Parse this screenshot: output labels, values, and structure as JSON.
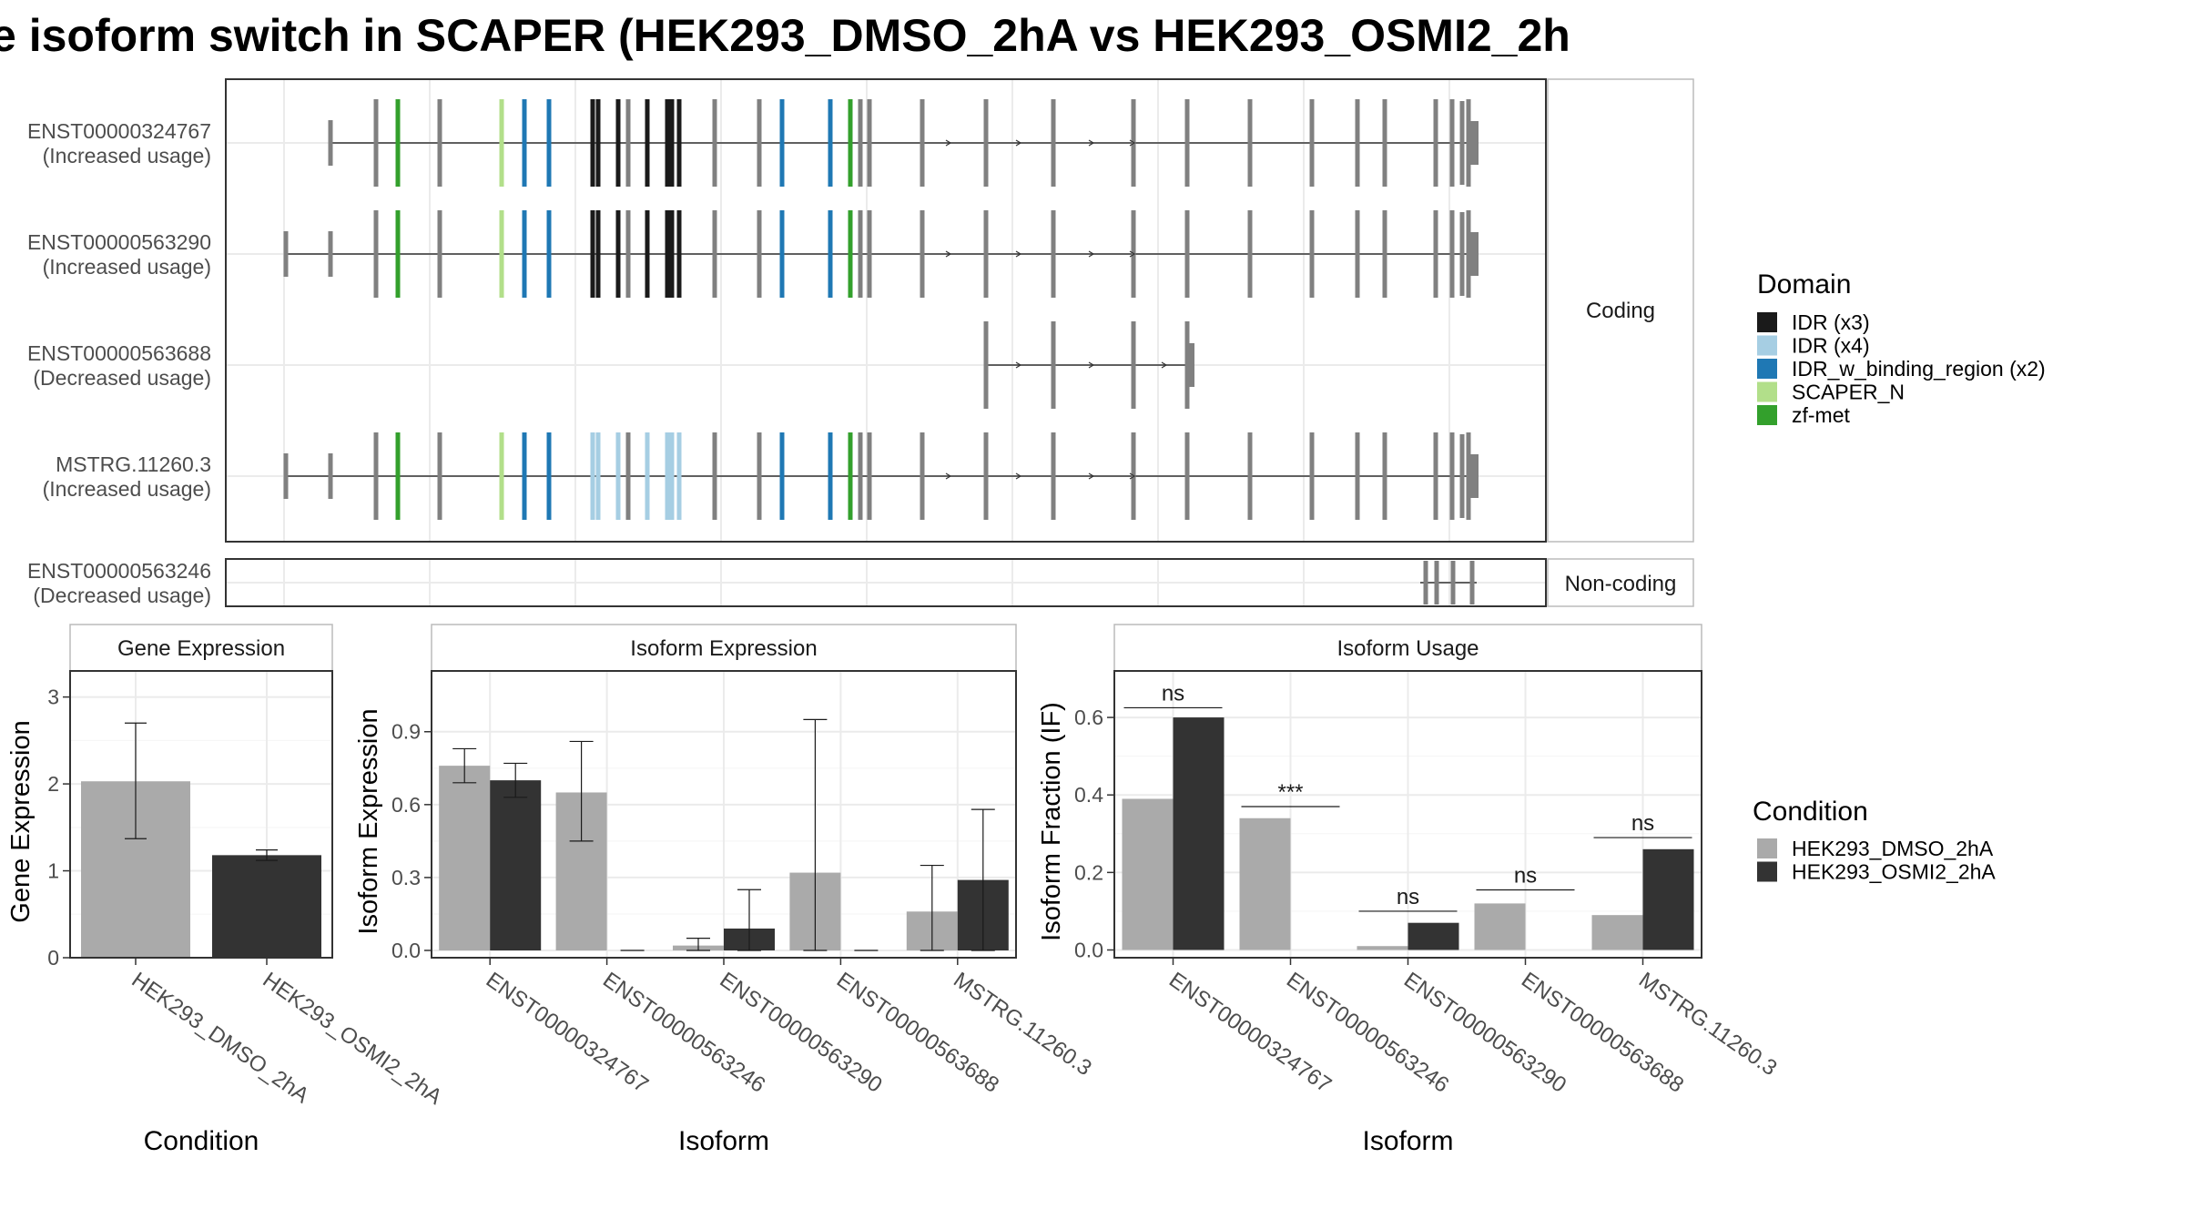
{
  "title": "e isoform switch in SCAPER (HEK293_DMSO_2hA vs HEK293_OSMI2_2h",
  "structure": {
    "facets": [
      "Coding",
      "Non-coding"
    ],
    "isoforms": [
      {
        "id": "ENST00000324767",
        "usage": "(Increased usage)",
        "facet": "Coding"
      },
      {
        "id": "ENST00000563290",
        "usage": "(Increased usage)",
        "facet": "Coding"
      },
      {
        "id": "ENST00000563688",
        "usage": "(Decreased usage)",
        "facet": "Coding"
      },
      {
        "id": "MSTRG.11260.3",
        "usage": "(Increased usage)",
        "facet": "Coding"
      },
      {
        "id": "ENST00000563246",
        "usage": "(Decreased usage)",
        "facet": "Non-coding"
      }
    ],
    "domain_legend": {
      "title": "Domain",
      "items": [
        {
          "label": "IDR (x3)",
          "color": "#1a1a1a"
        },
        {
          "label": "IDR (x4)",
          "color": "#a6cee3"
        },
        {
          "label": "IDR_w_binding_region (x2)",
          "color": "#1f78b4"
        },
        {
          "label": "SCAPER_N",
          "color": "#b2df8a"
        },
        {
          "label": "zf-met",
          "color": "#33a02c"
        }
      ]
    }
  },
  "condition_legend": {
    "title": "Condition",
    "items": [
      {
        "label": "HEK293_DMSO_2hA",
        "color": "#aaaaaa"
      },
      {
        "label": "HEK293_OSMI2_2hA",
        "color": "#333333"
      }
    ]
  },
  "chart_data": [
    {
      "type": "bar",
      "title": "Gene Expression",
      "xlabel": "Condition",
      "ylabel": "Gene Expression",
      "ylim": [
        0,
        3.3
      ],
      "yticks": [
        0,
        1,
        2,
        3
      ],
      "ytick_labels": [
        "0",
        "1",
        "2",
        "3"
      ],
      "categories": [
        "HEK293_DMSO_2hA",
        "HEK293_OSMI2_2hA"
      ],
      "values": [
        2.03,
        1.18
      ],
      "error_low": [
        1.37,
        1.12
      ],
      "error_high": [
        2.7,
        1.24
      ]
    },
    {
      "type": "bar",
      "title": "Isoform Expression",
      "xlabel": "Isoform",
      "ylabel": "Isoform Expression",
      "ylim": [
        -0.03,
        1.15
      ],
      "yticks": [
        0.0,
        0.3,
        0.6,
        0.9
      ],
      "ytick_labels": [
        "0.0",
        "0.3",
        "0.6",
        "0.9"
      ],
      "categories": [
        "ENST00000324767",
        "ENST00000563246",
        "ENST00000563290",
        "ENST00000563688",
        "MSTRG.11260.3"
      ],
      "series": [
        {
          "name": "HEK293_DMSO_2hA",
          "values": [
            0.76,
            0.65,
            0.02,
            0.32,
            0.16
          ],
          "error_low": [
            0.69,
            0.45,
            0.0,
            0.0,
            0.0
          ],
          "error_high": [
            0.83,
            0.86,
            0.05,
            0.95,
            0.35
          ]
        },
        {
          "name": "HEK293_OSMI2_2hA",
          "values": [
            0.7,
            0.0,
            0.09,
            0.0,
            0.29
          ],
          "error_low": [
            0.63,
            0.0,
            0.0,
            0.0,
            0.0
          ],
          "error_high": [
            0.77,
            0.0,
            0.25,
            0.0,
            0.58
          ]
        }
      ]
    },
    {
      "type": "bar",
      "title": "Isoform Usage",
      "xlabel": "Isoform",
      "ylabel": "Isoform Fraction (IF)",
      "ylim": [
        -0.02,
        0.72
      ],
      "yticks": [
        0.0,
        0.2,
        0.4,
        0.6
      ],
      "ytick_labels": [
        "0.0",
        "0.2",
        "0.4",
        "0.6"
      ],
      "categories": [
        "ENST00000324767",
        "ENST00000563246",
        "ENST00000563290",
        "ENST00000563688",
        "MSTRG.11260.3"
      ],
      "series": [
        {
          "name": "HEK293_DMSO_2hA",
          "values": [
            0.39,
            0.34,
            0.01,
            0.12,
            0.09
          ]
        },
        {
          "name": "HEK293_OSMI2_2hA",
          "values": [
            0.6,
            0.0,
            0.07,
            0.0,
            0.26
          ]
        }
      ],
      "significance": [
        "ns",
        "***",
        "ns",
        "ns",
        "ns"
      ],
      "significance_level": [
        0.625,
        0.37,
        0.1,
        0.155,
        0.29
      ]
    }
  ]
}
